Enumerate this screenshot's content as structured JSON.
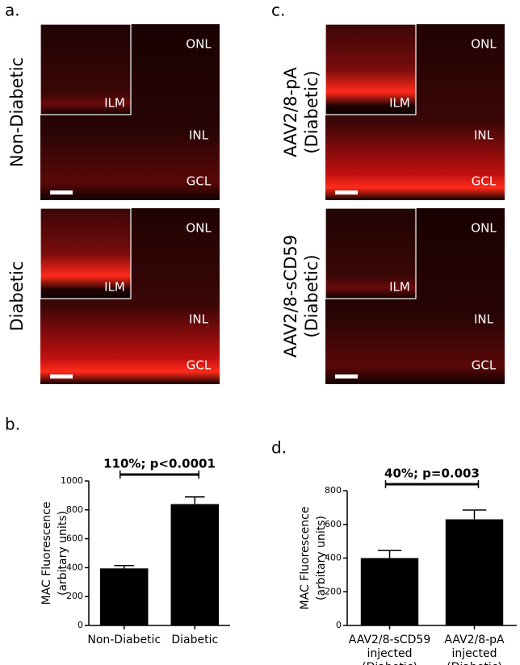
{
  "panels": [
    {
      "label": "a.",
      "images": [
        {
          "title": [
            "Non-Diabetic"
          ],
          "labels": [
            "ILM",
            "ONL",
            "INL",
            "GCL"
          ]
        },
        {
          "title": [
            "Diabetic"
          ],
          "labels": [
            "ILM",
            "ONL",
            "INL",
            "GCL"
          ]
        }
      ]
    },
    {
      "label": "c.",
      "images": [
        {
          "title": [
            "AAV2/8-pA",
            "(Diabetic)"
          ],
          "labels": [
            "ILM",
            "ONL",
            "INL",
            "GCL"
          ]
        },
        {
          "title": [
            "AAV2/8-sCD59",
            "(Diabetic)"
          ],
          "labels": [
            "ILM",
            "ONL",
            "INL",
            "GCL"
          ]
        }
      ]
    },
    {
      "label": "b."
    },
    {
      "label": "d."
    }
  ],
  "chart_data": [
    {
      "type": "bar",
      "ylabel": [
        "MAC Fluorescence",
        "(arbitary units)"
      ],
      "categories": [
        [
          "Non-Diabetic"
        ],
        [
          "Diabetic"
        ]
      ],
      "values": [
        395,
        840
      ],
      "errors": [
        20,
        50
      ],
      "color": "#000000",
      "ylim": [
        0,
        1000
      ],
      "yticks": [
        0,
        200,
        400,
        600,
        800,
        1000
      ],
      "annotation": "110%; p<0.0001"
    },
    {
      "type": "bar",
      "ylabel": [
        "MAC Fluorescence",
        "(arbitary units)"
      ],
      "categories": [
        [
          "AAV2/8-sCD59",
          "injected",
          "(Diabetic)"
        ],
        [
          "AAV2/8-pA",
          "injected",
          "(Diabetic)"
        ]
      ],
      "values": [
        400,
        630
      ],
      "errors": [
        45,
        55
      ],
      "color": "#000000",
      "ylim": [
        0,
        800
      ],
      "yticks": [
        0,
        200,
        400,
        600,
        800
      ],
      "annotation": "40%; p=0.003"
    }
  ]
}
